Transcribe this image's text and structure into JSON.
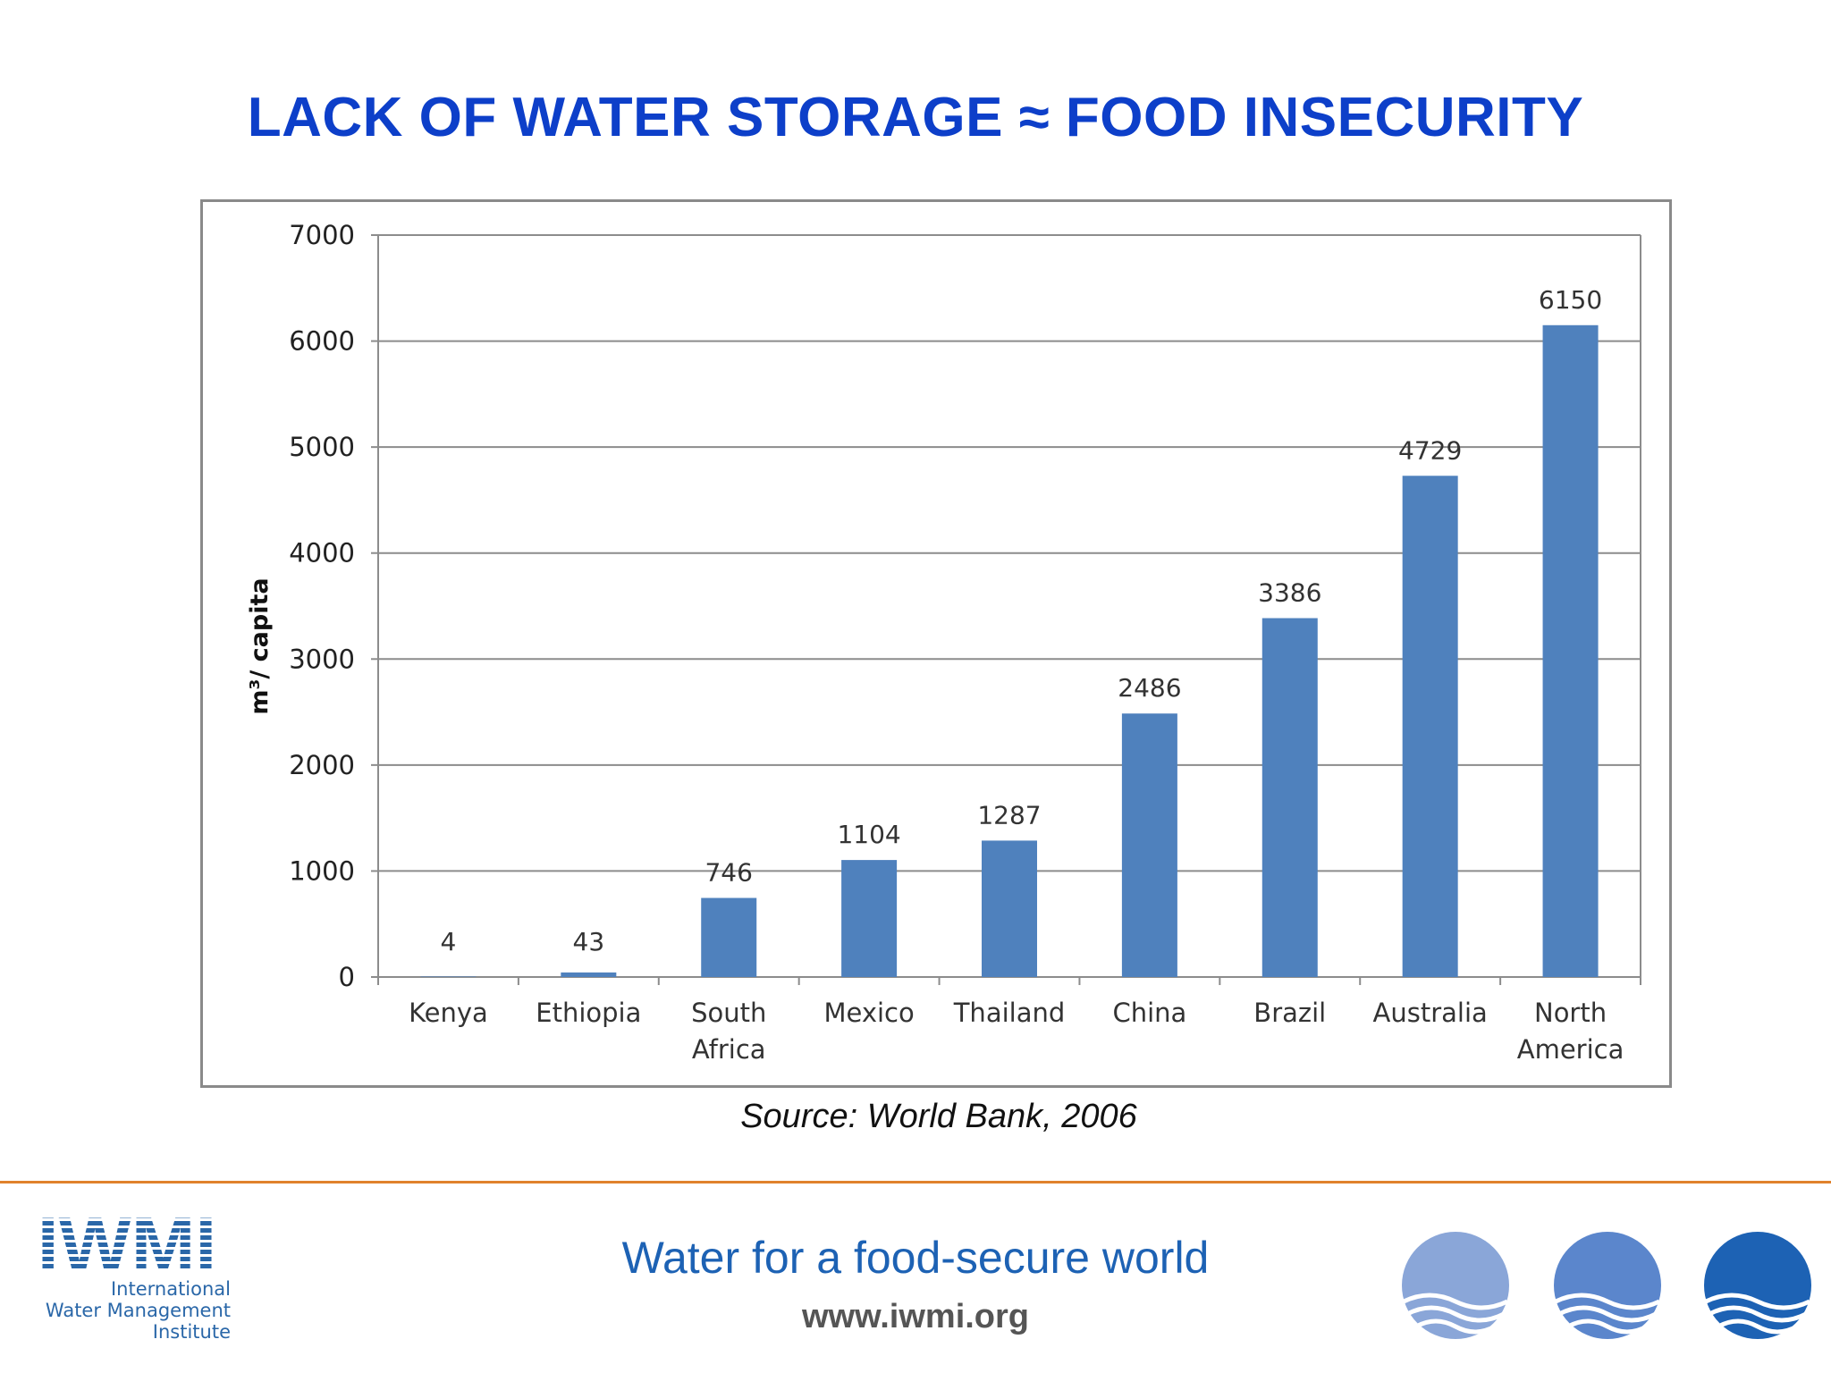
{
  "title": "LACK OF WATER STORAGE  ≈ FOOD INSECURITY",
  "source": "Source: World Bank, 2006",
  "footer": {
    "tagline": "Water for a food-secure world",
    "url": "www.iwmi.org",
    "logo": {
      "mark": "IWMI",
      "line1": "International",
      "line2": "Water Management",
      "line3": "Institute"
    },
    "circle_colors": [
      "#8aa6d8",
      "#5b86cc",
      "#1d62b4"
    ]
  },
  "chart_data": {
    "type": "bar",
    "categories": [
      "Kenya",
      "Ethiopia",
      "South Africa",
      "Mexico",
      "Thailand",
      "China",
      "Brazil",
      "Australia",
      "North America"
    ],
    "category_lines": [
      [
        "Kenya"
      ],
      [
        "Ethiopia"
      ],
      [
        "South",
        "Africa"
      ],
      [
        "Mexico"
      ],
      [
        "Thailand"
      ],
      [
        "China"
      ],
      [
        "Brazil"
      ],
      [
        "Australia"
      ],
      [
        "North",
        "America"
      ]
    ],
    "values": [
      4,
      43,
      746,
      1104,
      1287,
      2486,
      3386,
      4729,
      6150
    ],
    "data_labels": [
      "4",
      "43",
      "746",
      "1104",
      "1287",
      "2486",
      "3386",
      "4729",
      "6150"
    ],
    "ylabel": "m³/ capita",
    "xlabel": "",
    "ylim": [
      0,
      7000
    ],
    "yticks": [
      0,
      1000,
      2000,
      3000,
      4000,
      5000,
      6000,
      7000
    ],
    "grid": true,
    "bar_color": "#4f81bd"
  }
}
